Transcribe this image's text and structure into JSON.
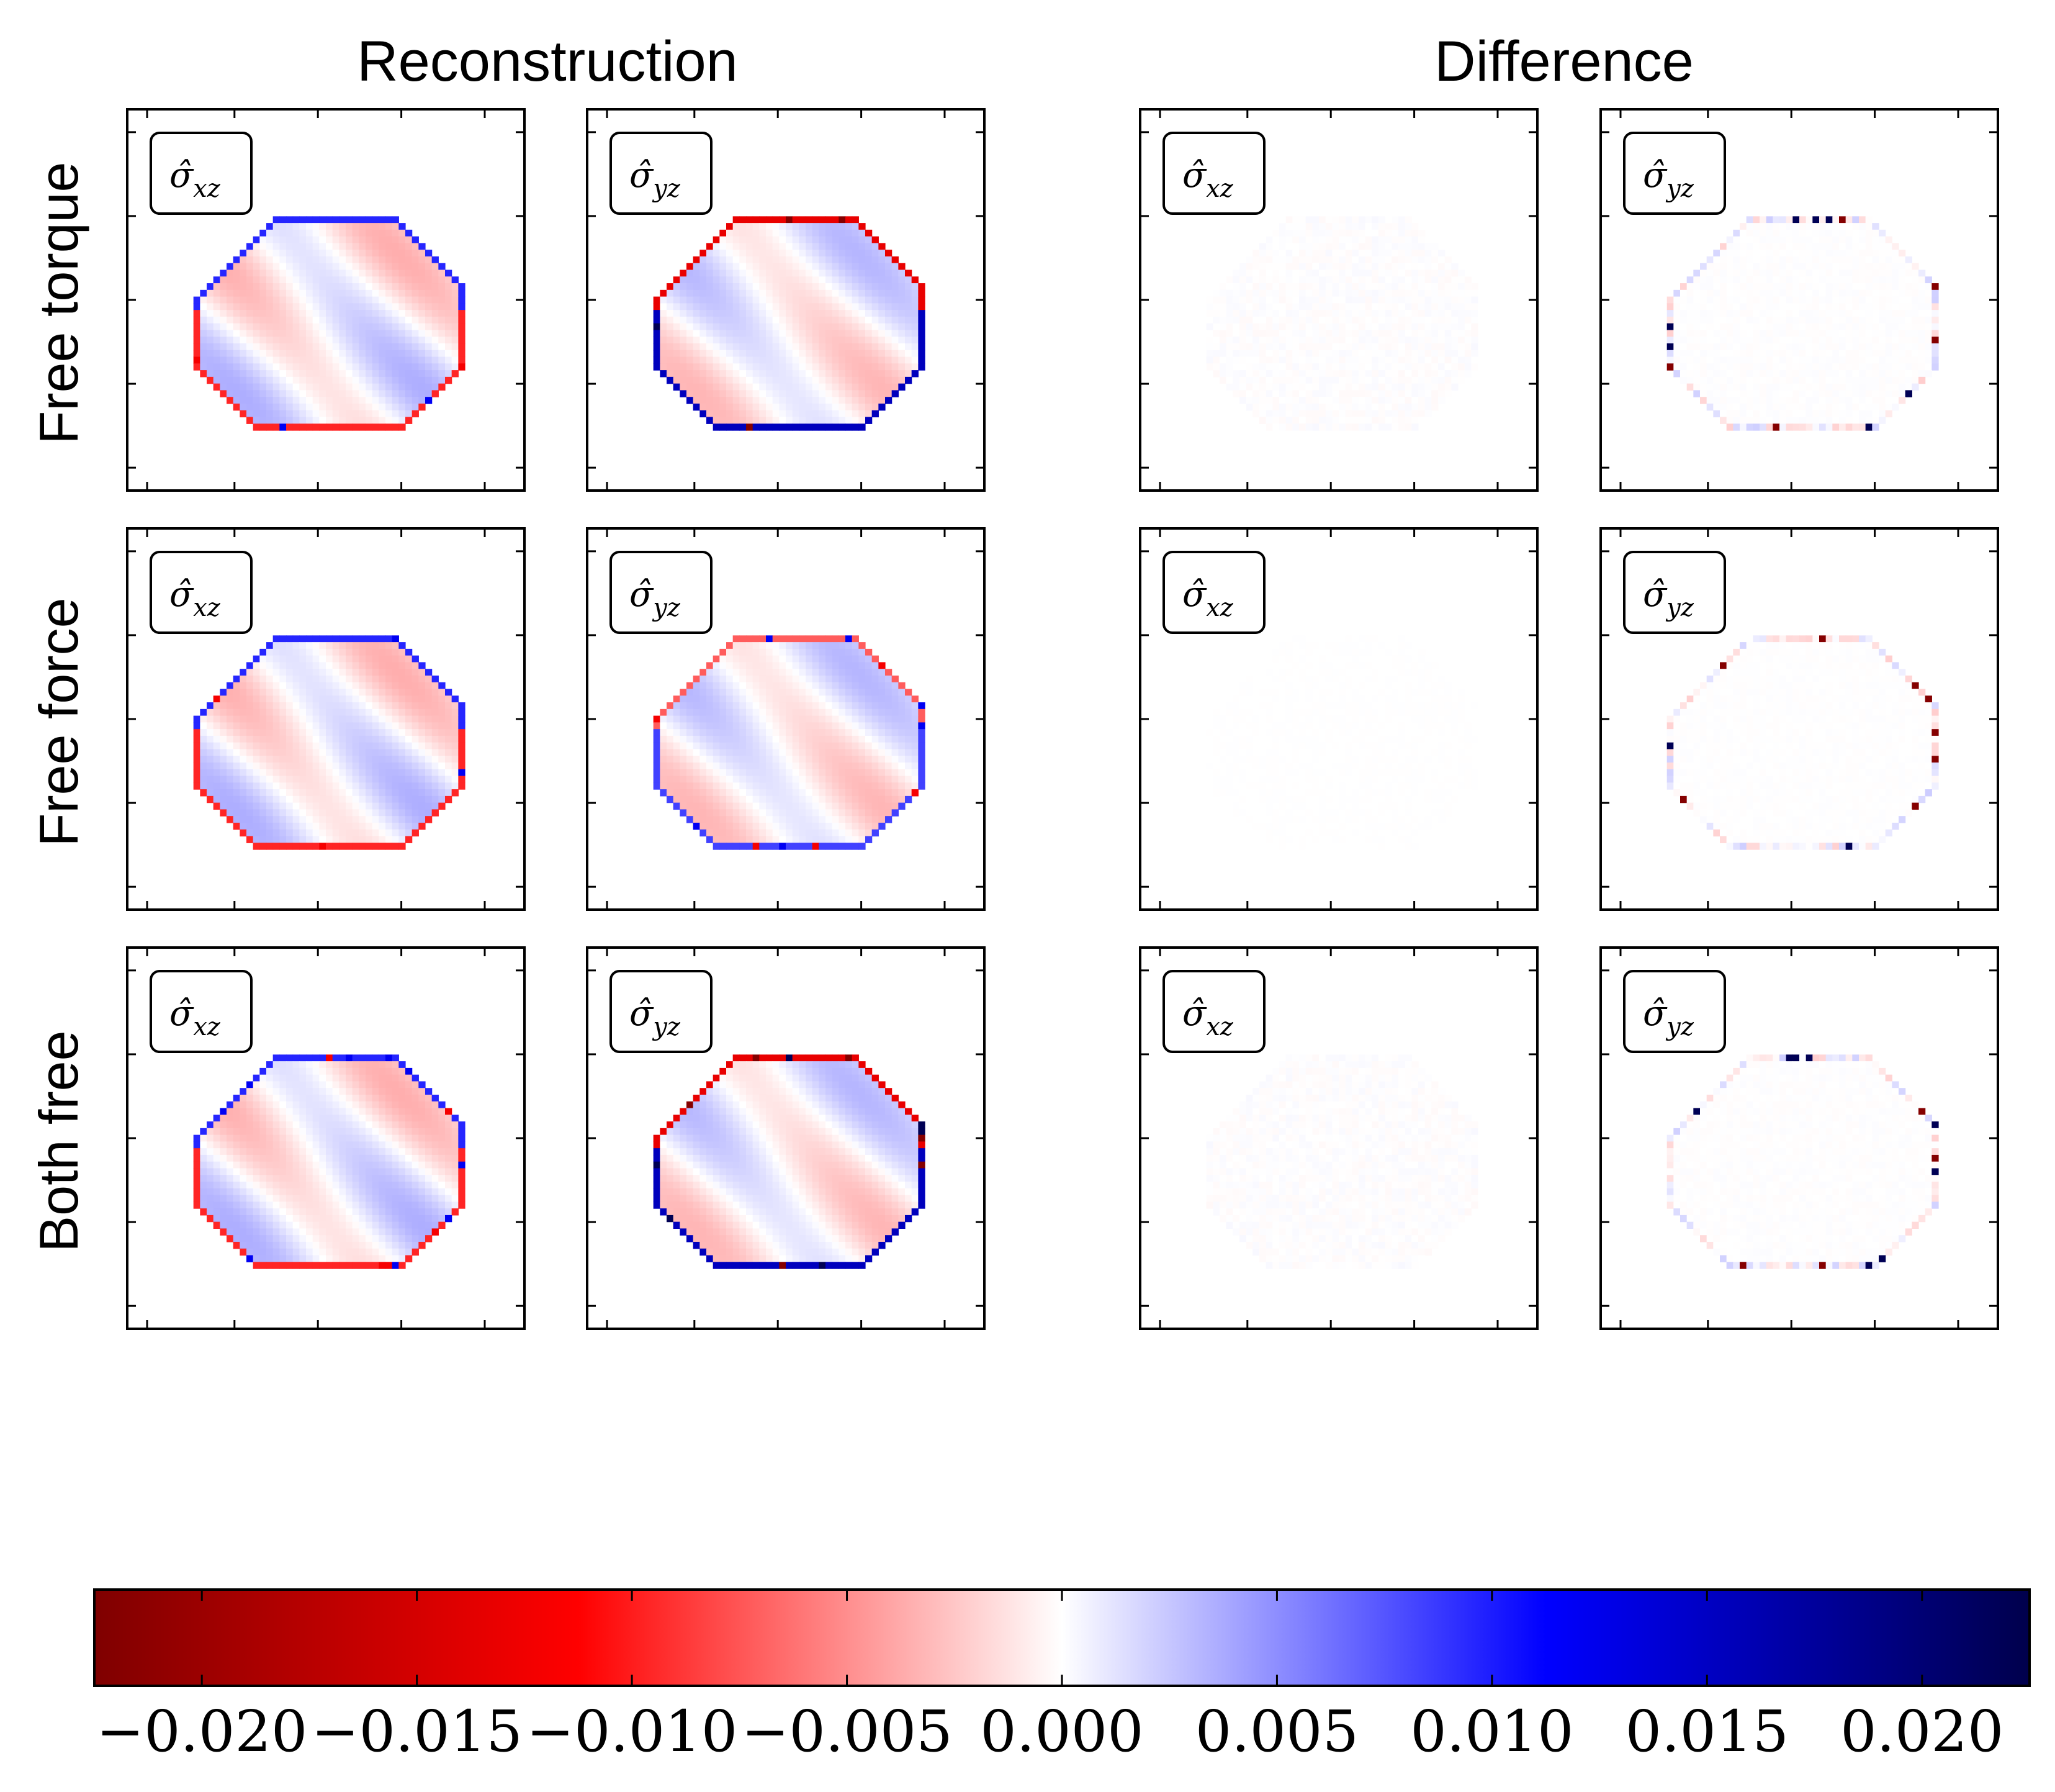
{
  "chart_data": {
    "type": "heatmap",
    "column_groups": [
      {
        "title": "Reconstruction"
      },
      {
        "title": "Difference"
      }
    ],
    "row_labels": [
      "Free torque",
      "Free force",
      "Both free"
    ],
    "panel_labels": [
      "σ̂xz",
      "σ̂yz",
      "σ̂xz",
      "σ̂yz"
    ],
    "panel_label_parts": [
      {
        "main": "σ̂",
        "sub": "xz"
      },
      {
        "main": "σ̂",
        "sub": "yz"
      },
      {
        "main": "σ̂",
        "sub": "xz"
      },
      {
        "main": "σ̂",
        "sub": "yz"
      }
    ],
    "colormap": "seismic_r",
    "colormap_stops": [
      "#7f0000",
      "#ff0000",
      "#ffffff",
      "#0000ff",
      "#00004c"
    ],
    "clim": [
      -0.0225,
      0.0225
    ],
    "colorbar": {
      "orientation": "horizontal",
      "placement": "bottom",
      "ticks": [
        -0.02,
        -0.015,
        -0.01,
        -0.005,
        0.0,
        0.005,
        0.01,
        0.015,
        0.02
      ],
      "tick_labels": [
        "−0.020",
        "−0.015",
        "−0.010",
        "−0.005",
        "0.000",
        "0.005",
        "0.010",
        "0.015",
        "0.020"
      ]
    },
    "panels": [
      {
        "row": "Free torque",
        "group": "Reconstruction",
        "component": "xz",
        "edge_max": 0.012,
        "interior_max": 0.004
      },
      {
        "row": "Free torque",
        "group": "Reconstruction",
        "component": "yz",
        "edge_max": 0.022,
        "interior_max": 0.004
      },
      {
        "row": "Free torque",
        "group": "Difference",
        "component": "xz",
        "edge_max": 0.003,
        "interior_max": 0.0005
      },
      {
        "row": "Free torque",
        "group": "Difference",
        "component": "yz",
        "edge_max": 0.022,
        "interior_max": 0.0003
      },
      {
        "row": "Free force",
        "group": "Reconstruction",
        "component": "xz",
        "edge_max": 0.012,
        "interior_max": 0.004
      },
      {
        "row": "Free force",
        "group": "Reconstruction",
        "component": "yz",
        "edge_max": 0.012,
        "interior_max": 0.004
      },
      {
        "row": "Free force",
        "group": "Difference",
        "component": "xz",
        "edge_max": 0.0003,
        "interior_max": 0.0001
      },
      {
        "row": "Free force",
        "group": "Difference",
        "component": "yz",
        "edge_max": 0.022,
        "interior_max": 0.0002
      },
      {
        "row": "Both free",
        "group": "Reconstruction",
        "component": "xz",
        "edge_max": 0.012,
        "interior_max": 0.004
      },
      {
        "row": "Both free",
        "group": "Reconstruction",
        "component": "yz",
        "edge_max": 0.022,
        "interior_max": 0.004
      },
      {
        "row": "Both free",
        "group": "Difference",
        "component": "xz",
        "edge_max": 0.003,
        "interior_max": 0.0005
      },
      {
        "row": "Both free",
        "group": "Difference",
        "component": "yz",
        "edge_max": 0.022,
        "interior_max": 0.0003
      }
    ]
  }
}
